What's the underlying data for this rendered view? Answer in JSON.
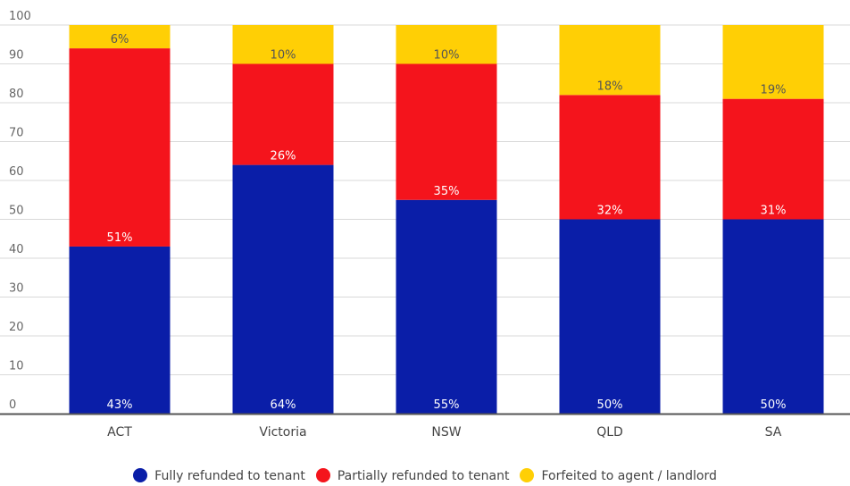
{
  "chart_data": {
    "type": "bar",
    "stacked": true,
    "categories": [
      "ACT",
      "Victoria",
      "NSW",
      "QLD",
      "SA"
    ],
    "series": [
      {
        "name": "Fully refunded to tenant",
        "values": [
          43,
          64,
          55,
          50,
          50
        ],
        "labels": [
          "43%",
          "64%",
          "55%",
          "50%",
          "50%"
        ],
        "color": "#0a1ea8",
        "label_color": "#ffffff"
      },
      {
        "name": "Partially refunded to tenant",
        "values": [
          51,
          26,
          35,
          32,
          31
        ],
        "labels": [
          "51%",
          "26%",
          "35%",
          "32%",
          "31%"
        ],
        "color": "#f4141c",
        "label_color": "#ffffff"
      },
      {
        "name": "Forfeited to agent / landlord",
        "values": [
          6,
          10,
          10,
          18,
          19
        ],
        "labels": [
          "6%",
          "10%",
          "10%",
          "18%",
          "19%"
        ],
        "color": "#ffcf05",
        "label_color": "#555555"
      }
    ],
    "yticks": [
      0,
      10,
      20,
      30,
      40,
      50,
      60,
      70,
      80,
      90,
      100
    ],
    "ylim": [
      0,
      100
    ],
    "grid": true,
    "legend_position": "bottom",
    "title": "",
    "xlabel": "",
    "ylabel": ""
  }
}
